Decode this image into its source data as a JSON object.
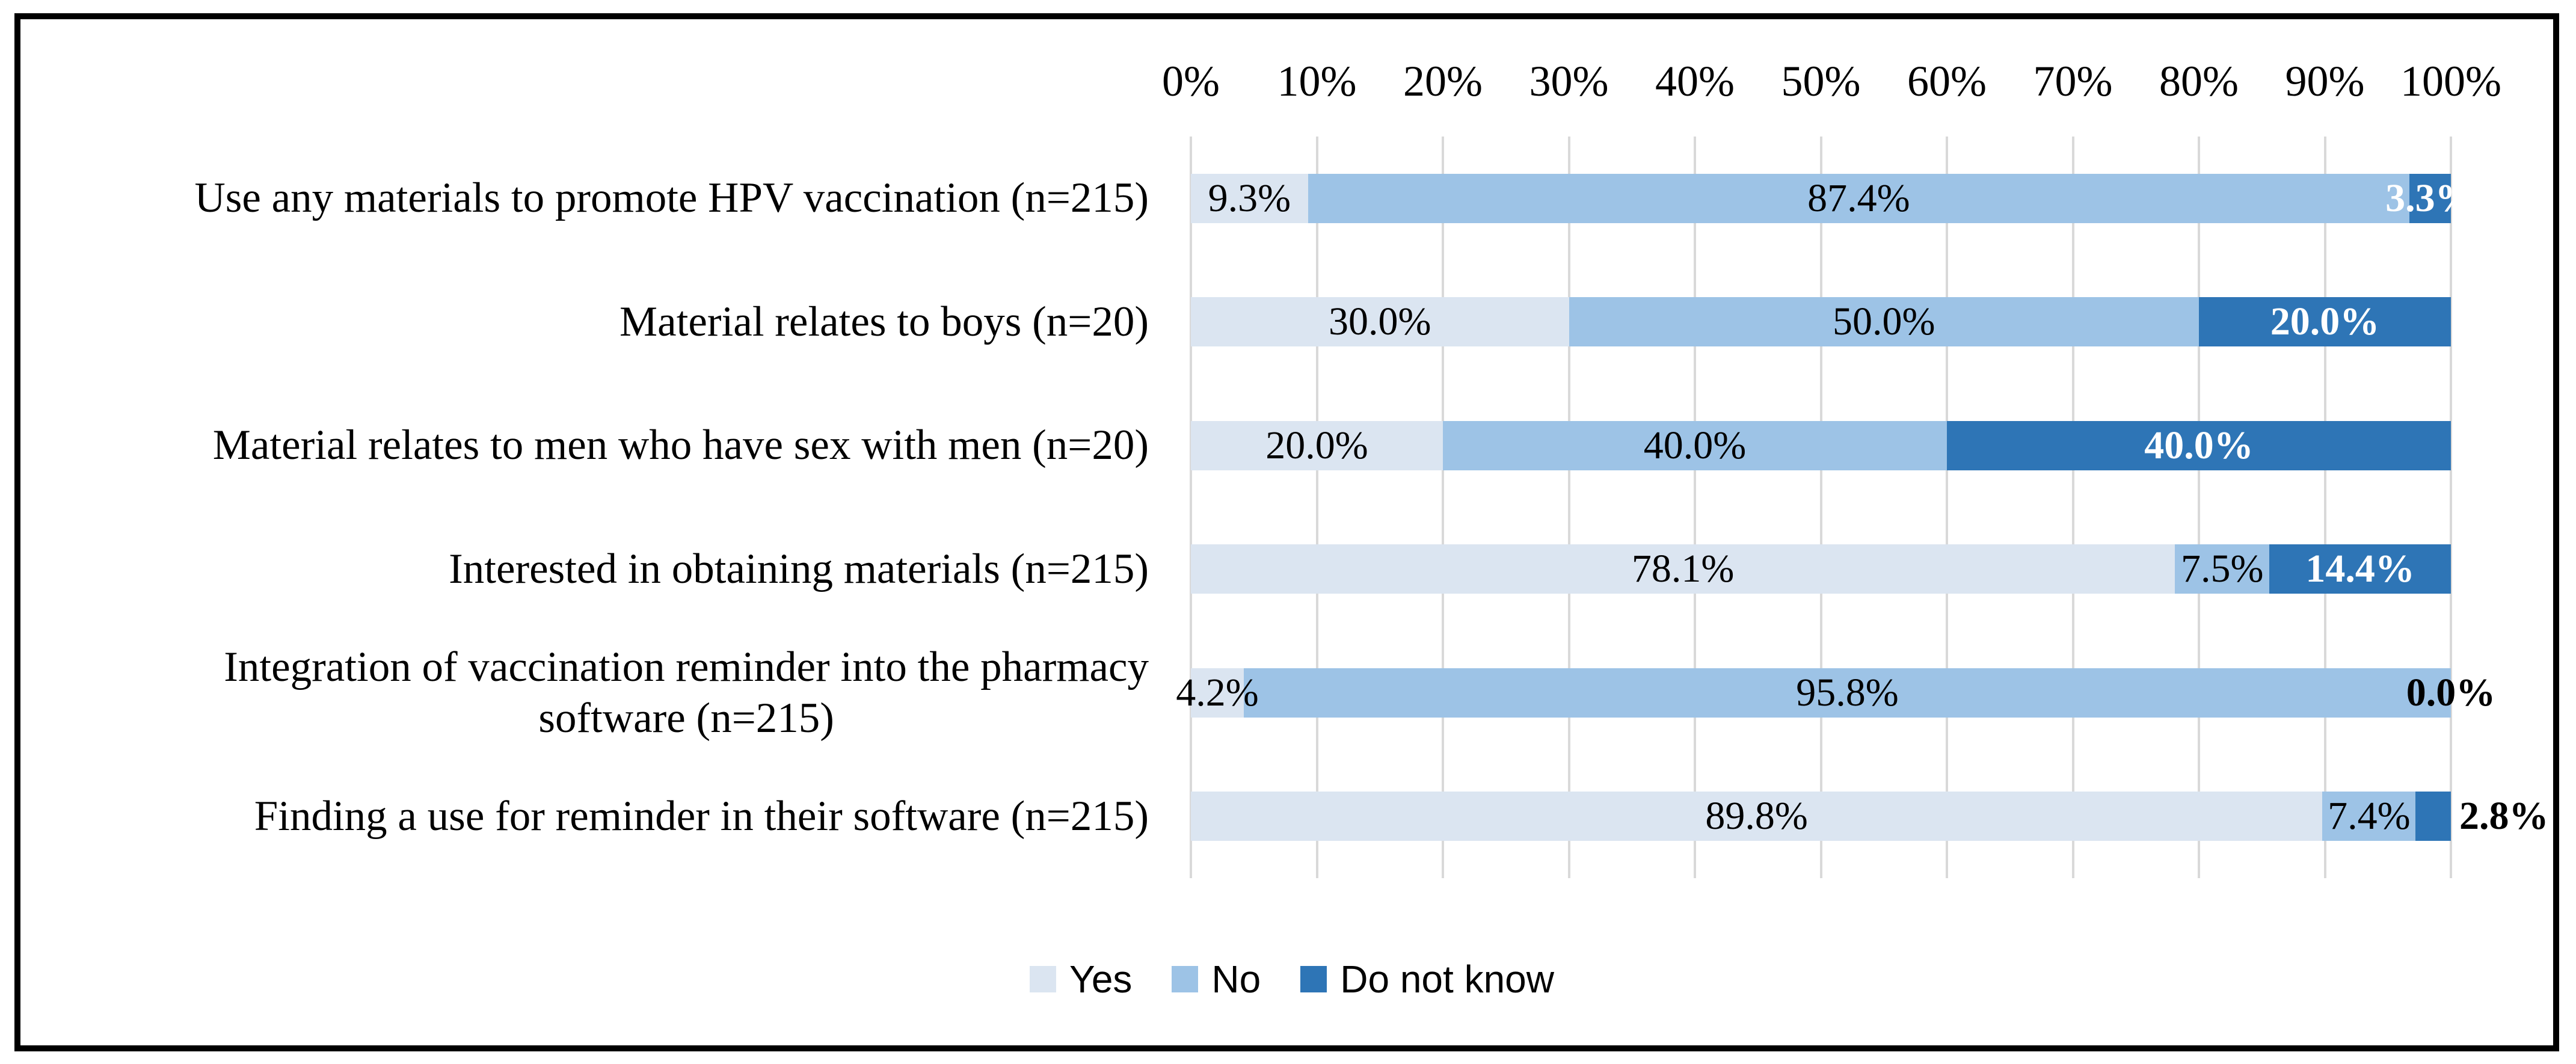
{
  "page": {
    "background_color": "#ffffff",
    "frame_border_color": "#000000"
  },
  "chart_data": {
    "type": "bar",
    "stacked": true,
    "orientation": "horizontal",
    "title": "",
    "x_axis": {
      "min": 0,
      "max": 100,
      "tick_step": 10,
      "tick_labels": [
        "0%",
        "10%",
        "20%",
        "30%",
        "40%",
        "50%",
        "60%",
        "70%",
        "80%",
        "90%",
        "100%"
      ],
      "gridlines": true,
      "gridline_color": "#d9d9d9"
    },
    "categories": [
      "Use any materials to promote HPV vaccination (n=215)",
      "Material relates to boys (n=20)",
      "Material relates to men who have sex with men (n=20)",
      "Interested in obtaining materials (n=215)",
      "Integration of vaccination reminder into the pharmacy\nsoftware (n=215)",
      "Finding a use for reminder in their software (n=215)"
    ],
    "series": [
      {
        "name": "Yes",
        "color": "#dbe5f1",
        "values": [
          9.3,
          30.0,
          20.0,
          78.1,
          4.2,
          89.8
        ],
        "labels": [
          "9.3%",
          "30.0%",
          "20.0%",
          "78.1%",
          "4.2%",
          "89.8%"
        ],
        "label_color": "#000000",
        "label_bold": false
      },
      {
        "name": "No",
        "color": "#9dc3e6",
        "values": [
          87.4,
          50.0,
          40.0,
          7.5,
          95.8,
          7.4
        ],
        "labels": [
          "87.4%",
          "50.0%",
          "40.0%",
          "7.5%",
          "95.8%",
          "7.4%"
        ],
        "label_color": "#000000",
        "label_bold": false
      },
      {
        "name": "Do not know",
        "color": "#2e75b6",
        "values": [
          3.3,
          20.0,
          40.0,
          14.4,
          0.0,
          2.8
        ],
        "labels": [
          "3.3%",
          "20.0%",
          "40.0%",
          "14.4%",
          "0.0%",
          "2.8%"
        ],
        "label_bold": true,
        "label_placement": [
          "inside",
          "inside",
          "inside",
          "inside",
          "end",
          "outside"
        ],
        "label_colors": [
          "#ffffff",
          "#ffffff",
          "#ffffff",
          "#ffffff",
          "#000000",
          "#000000"
        ]
      }
    ],
    "legend": {
      "position": "bottom-left",
      "items": [
        "Yes",
        "No",
        "Do not know"
      ]
    }
  }
}
